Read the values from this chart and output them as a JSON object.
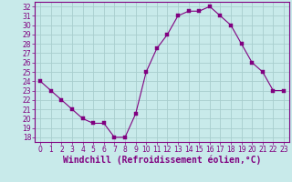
{
  "x": [
    0,
    1,
    2,
    3,
    4,
    5,
    6,
    7,
    8,
    9,
    10,
    11,
    12,
    13,
    14,
    15,
    16,
    17,
    18,
    19,
    20,
    21,
    22,
    23
  ],
  "y": [
    24,
    23,
    22,
    21,
    20,
    19.5,
    19.5,
    18,
    18,
    20.5,
    25,
    27.5,
    29,
    31,
    31.5,
    31.5,
    32,
    31,
    30,
    28,
    26,
    25,
    23,
    23
  ],
  "line_color": "#800080",
  "marker": "s",
  "marker_size": 2.5,
  "marker_color": "#800080",
  "bg_color": "#c8eaea",
  "grid_color": "#a8cece",
  "xlabel": "Windchill (Refroidissement éolien,°C)",
  "ylim": [
    17.5,
    32.5
  ],
  "xlim": [
    -0.5,
    23.5
  ],
  "ytick_labels": [
    "18",
    "19",
    "20",
    "21",
    "22",
    "23",
    "24",
    "25",
    "26",
    "27",
    "28",
    "29",
    "30",
    "31",
    "32"
  ],
  "ytick_vals": [
    18,
    19,
    20,
    21,
    22,
    23,
    24,
    25,
    26,
    27,
    28,
    29,
    30,
    31,
    32
  ],
  "xtick_vals": [
    0,
    1,
    2,
    3,
    4,
    5,
    6,
    7,
    8,
    9,
    10,
    11,
    12,
    13,
    14,
    15,
    16,
    17,
    18,
    19,
    20,
    21,
    22,
    23
  ],
  "tick_fontsize": 5.5,
  "xlabel_fontsize": 7,
  "axis_color": "#800080",
  "spine_color": "#800080"
}
